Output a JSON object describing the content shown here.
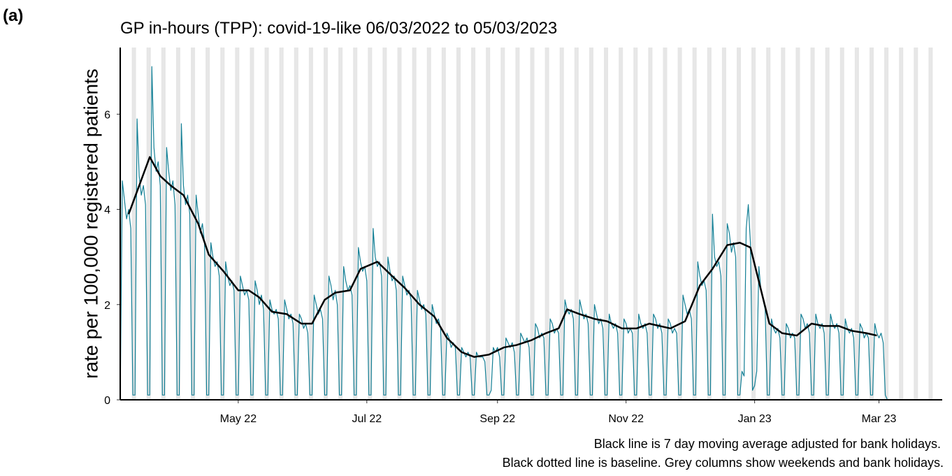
{
  "chart_data": {
    "type": "line",
    "panel_label": "(a)",
    "title": "GP in-hours (TPP): covid-19-like 06/03/2022 to 05/03/2023",
    "y_label": "rate per 100,000 registered patients",
    "notes": [
      "Black line is 7 day moving average adjusted for bank holidays.",
      "Black dotted line is baseline. Grey columns show weekends and bank holidays."
    ],
    "xlim": [
      0,
      390
    ],
    "xticks": [
      {
        "value": 56,
        "label": "May 22"
      },
      {
        "value": 117,
        "label": "Jul 22"
      },
      {
        "value": 179,
        "label": "Sep 22"
      },
      {
        "value": 240,
        "label": "Nov 22"
      },
      {
        "value": 301,
        "label": "Jan 23"
      },
      {
        "value": 360,
        "label": "Mar 23"
      }
    ],
    "ylim": [
      0,
      7.4
    ],
    "yticks": [
      0,
      2,
      4,
      6
    ],
    "series": [
      {
        "color": "#137f95",
        "x": [
          0,
          1,
          2,
          3,
          4,
          5,
          6,
          7,
          8,
          9,
          10,
          11,
          12,
          13,
          14,
          15,
          16,
          17,
          18,
          19,
          20,
          21,
          22,
          23,
          24,
          25,
          26,
          27,
          28,
          29,
          30,
          31,
          32,
          33,
          34,
          35,
          36,
          37,
          38,
          39,
          40,
          41,
          42,
          43,
          44,
          45,
          46,
          47,
          48,
          49,
          50,
          51,
          52,
          53,
          54,
          55,
          56,
          57,
          58,
          59,
          60,
          61,
          62,
          63,
          64,
          65,
          66,
          67,
          68,
          69,
          70,
          71,
          72,
          73,
          74,
          75,
          76,
          77,
          78,
          79,
          80,
          81,
          82,
          83,
          84,
          85,
          86,
          87,
          88,
          89,
          90,
          91,
          92,
          93,
          94,
          95,
          96,
          97,
          98,
          99,
          100,
          101,
          102,
          103,
          104,
          105,
          106,
          107,
          108,
          109,
          110,
          111,
          112,
          113,
          114,
          115,
          116,
          117,
          118,
          119,
          120,
          121,
          122,
          123,
          124,
          125,
          126,
          127,
          128,
          129,
          130,
          131,
          132,
          133,
          134,
          135,
          136,
          137,
          138,
          139,
          140,
          141,
          142,
          143,
          144,
          145,
          146,
          147,
          148,
          149,
          150,
          151,
          152,
          153,
          154,
          155,
          156,
          157,
          158,
          159,
          160,
          161,
          162,
          163,
          164,
          165,
          166,
          167,
          168,
          169,
          170,
          171,
          172,
          173,
          174,
          175,
          176,
          177,
          178,
          179,
          180,
          181,
          182,
          183,
          184,
          185,
          186,
          187,
          188,
          189,
          190,
          191,
          192,
          193,
          194,
          195,
          196,
          197,
          198,
          199,
          200,
          201,
          202,
          203,
          204,
          205,
          206,
          207,
          208,
          209,
          210,
          211,
          212,
          213,
          214,
          215,
          216,
          217,
          218,
          219,
          220,
          221,
          222,
          223,
          224,
          225,
          226,
          227,
          228,
          229,
          230,
          231,
          232,
          233,
          234,
          235,
          236,
          237,
          238,
          239,
          240,
          241,
          242,
          243,
          244,
          245,
          246,
          247,
          248,
          249,
          250,
          251,
          252,
          253,
          254,
          255,
          256,
          257,
          258,
          259,
          260,
          261,
          262,
          263,
          264,
          265,
          266,
          267,
          268,
          269,
          270,
          271,
          272,
          273,
          274,
          275,
          276,
          277,
          278,
          279,
          280,
          281,
          282,
          283,
          284,
          285,
          286,
          287,
          288,
          289,
          290,
          291,
          292,
          293,
          294,
          295,
          296,
          297,
          298,
          299,
          300,
          301,
          302,
          303,
          304,
          305,
          306,
          307,
          308,
          309,
          310,
          311,
          312,
          313,
          314,
          315,
          316,
          317,
          318,
          319,
          320,
          321,
          322,
          323,
          324,
          325,
          326,
          327,
          328,
          329,
          330,
          331,
          332,
          333,
          334,
          335,
          336,
          337,
          338,
          339,
          340,
          341,
          342,
          343,
          344,
          345,
          346,
          347,
          348,
          349,
          350,
          351,
          352,
          353,
          354,
          355,
          356,
          357,
          358,
          359,
          360,
          361,
          362,
          363,
          364
        ],
        "values": [
          0.0,
          4.6,
          4.2,
          3.8,
          4.0,
          3.6,
          0.1,
          0.1,
          5.9,
          4.7,
          4.3,
          4.5,
          4.1,
          0.1,
          0.1,
          7.0,
          5.3,
          4.8,
          5.0,
          4.5,
          0.1,
          0.1,
          5.3,
          4.8,
          4.4,
          4.6,
          4.1,
          0.1,
          0.1,
          5.8,
          4.5,
          4.1,
          4.3,
          3.9,
          0.1,
          0.1,
          4.3,
          3.9,
          3.5,
          3.7,
          3.3,
          0.1,
          0.1,
          3.3,
          3.0,
          2.8,
          2.9,
          2.6,
          0.1,
          0.1,
          2.9,
          2.6,
          2.4,
          2.5,
          2.3,
          0.1,
          0.1,
          2.6,
          2.4,
          2.2,
          2.3,
          2.1,
          0.1,
          0.1,
          2.5,
          2.3,
          2.0,
          2.2,
          1.9,
          0.1,
          0.1,
          2.1,
          1.9,
          1.8,
          1.9,
          1.7,
          0.1,
          0.1,
          2.1,
          1.9,
          1.7,
          1.8,
          1.6,
          0.1,
          0.1,
          1.8,
          1.7,
          1.5,
          1.6,
          1.4,
          0.1,
          0.1,
          2.2,
          2.0,
          1.8,
          1.9,
          1.7,
          0.1,
          0.1,
          2.6,
          2.4,
          2.1,
          2.3,
          2.0,
          0.1,
          0.1,
          2.8,
          2.5,
          2.3,
          2.4,
          2.2,
          0.1,
          0.1,
          3.2,
          2.9,
          2.7,
          2.8,
          2.5,
          0.1,
          0.1,
          3.6,
          3.0,
          2.8,
          2.9,
          2.6,
          0.1,
          0.1,
          3.0,
          2.7,
          2.5,
          2.6,
          2.3,
          0.1,
          0.1,
          2.6,
          2.4,
          2.2,
          2.3,
          2.1,
          0.1,
          0.1,
          2.3,
          2.1,
          1.9,
          2.0,
          1.8,
          0.1,
          0.1,
          2.0,
          1.8,
          1.6,
          1.7,
          1.5,
          0.1,
          0.1,
          1.4,
          1.3,
          1.1,
          1.2,
          1.1,
          0.1,
          0.1,
          1.1,
          1.0,
          0.9,
          1.0,
          0.9,
          0.1,
          0.1,
          1.0,
          0.9,
          0.9,
          0.9,
          0.8,
          0.1,
          0.1,
          0.2,
          1.1,
          1.0,
          1.1,
          0.9,
          0.1,
          0.1,
          1.3,
          1.2,
          1.1,
          1.2,
          1.0,
          0.1,
          0.1,
          1.4,
          1.3,
          1.2,
          1.3,
          1.1,
          0.1,
          0.1,
          1.6,
          1.5,
          1.3,
          1.4,
          1.3,
          0.1,
          0.1,
          1.7,
          1.6,
          1.4,
          1.5,
          1.4,
          0.1,
          0.1,
          2.1,
          1.9,
          1.8,
          1.9,
          1.7,
          0.1,
          0.1,
          2.1,
          1.9,
          1.7,
          1.8,
          1.6,
          0.1,
          0.1,
          2.0,
          1.8,
          1.6,
          1.7,
          1.5,
          0.1,
          0.1,
          1.8,
          1.6,
          1.5,
          1.6,
          1.4,
          0.1,
          0.1,
          1.7,
          1.6,
          1.4,
          1.5,
          1.4,
          0.1,
          0.1,
          1.8,
          1.6,
          1.5,
          1.6,
          1.4,
          0.1,
          0.1,
          1.8,
          1.7,
          1.5,
          1.6,
          1.4,
          0.1,
          0.1,
          1.7,
          1.6,
          1.4,
          1.5,
          1.4,
          0.1,
          0.1,
          2.2,
          2.0,
          1.8,
          1.9,
          1.7,
          0.1,
          0.1,
          2.9,
          2.6,
          2.4,
          2.5,
          2.3,
          0.1,
          0.1,
          3.9,
          3.0,
          2.8,
          2.9,
          2.6,
          0.1,
          0.1,
          3.7,
          3.5,
          3.1,
          3.3,
          3.0,
          0.1,
          0.1,
          0.6,
          0.5,
          3.6,
          4.1,
          3.3,
          0.2,
          0.3,
          0.6,
          2.8,
          2.3,
          2.1,
          1.9,
          0.1,
          0.1,
          1.7,
          1.5,
          1.4,
          1.5,
          1.3,
          0.1,
          0.1,
          1.6,
          1.5,
          1.3,
          1.4,
          1.3,
          0.1,
          0.1,
          1.8,
          1.7,
          1.5,
          1.6,
          1.4,
          0.1,
          0.1,
          1.8,
          1.6,
          1.5,
          1.6,
          1.4,
          0.1,
          0.1,
          1.8,
          1.6,
          1.5,
          1.6,
          1.4,
          0.1,
          0.1,
          1.7,
          1.5,
          1.4,
          1.5,
          1.3,
          0.1,
          0.1,
          1.6,
          1.5,
          1.3,
          1.4,
          1.3,
          0.1,
          0.1,
          1.6,
          1.4,
          1.3,
          1.4,
          1.2,
          0.1,
          0.0
        ]
      },
      {
        "color": "#000000",
        "x": [
          4,
          9,
          14,
          19,
          24,
          30,
          37,
          42,
          49,
          56,
          61,
          66,
          72,
          79,
          86,
          91,
          97,
          102,
          109,
          114,
          122,
          129,
          135,
          142,
          149,
          155,
          162,
          168,
          175,
          182,
          188,
          195,
          202,
          208,
          212,
          218,
          225,
          231,
          238,
          245,
          251,
          261,
          268,
          275,
          281,
          288,
          294,
          299,
          308,
          314,
          321,
          328,
          334,
          341,
          347,
          354,
          359
        ],
        "values": [
          3.9,
          4.5,
          5.1,
          4.7,
          4.5,
          4.3,
          3.7,
          3.05,
          2.7,
          2.3,
          2.3,
          2.15,
          1.85,
          1.8,
          1.6,
          1.6,
          2.1,
          2.25,
          2.3,
          2.75,
          2.9,
          2.6,
          2.35,
          2.0,
          1.75,
          1.3,
          1.0,
          0.9,
          0.95,
          1.1,
          1.15,
          1.25,
          1.4,
          1.5,
          1.9,
          1.8,
          1.7,
          1.65,
          1.5,
          1.5,
          1.6,
          1.5,
          1.65,
          2.4,
          2.75,
          3.25,
          3.3,
          3.2,
          1.6,
          1.4,
          1.35,
          1.6,
          1.55,
          1.55,
          1.45,
          1.4,
          1.35
        ]
      }
    ]
  }
}
